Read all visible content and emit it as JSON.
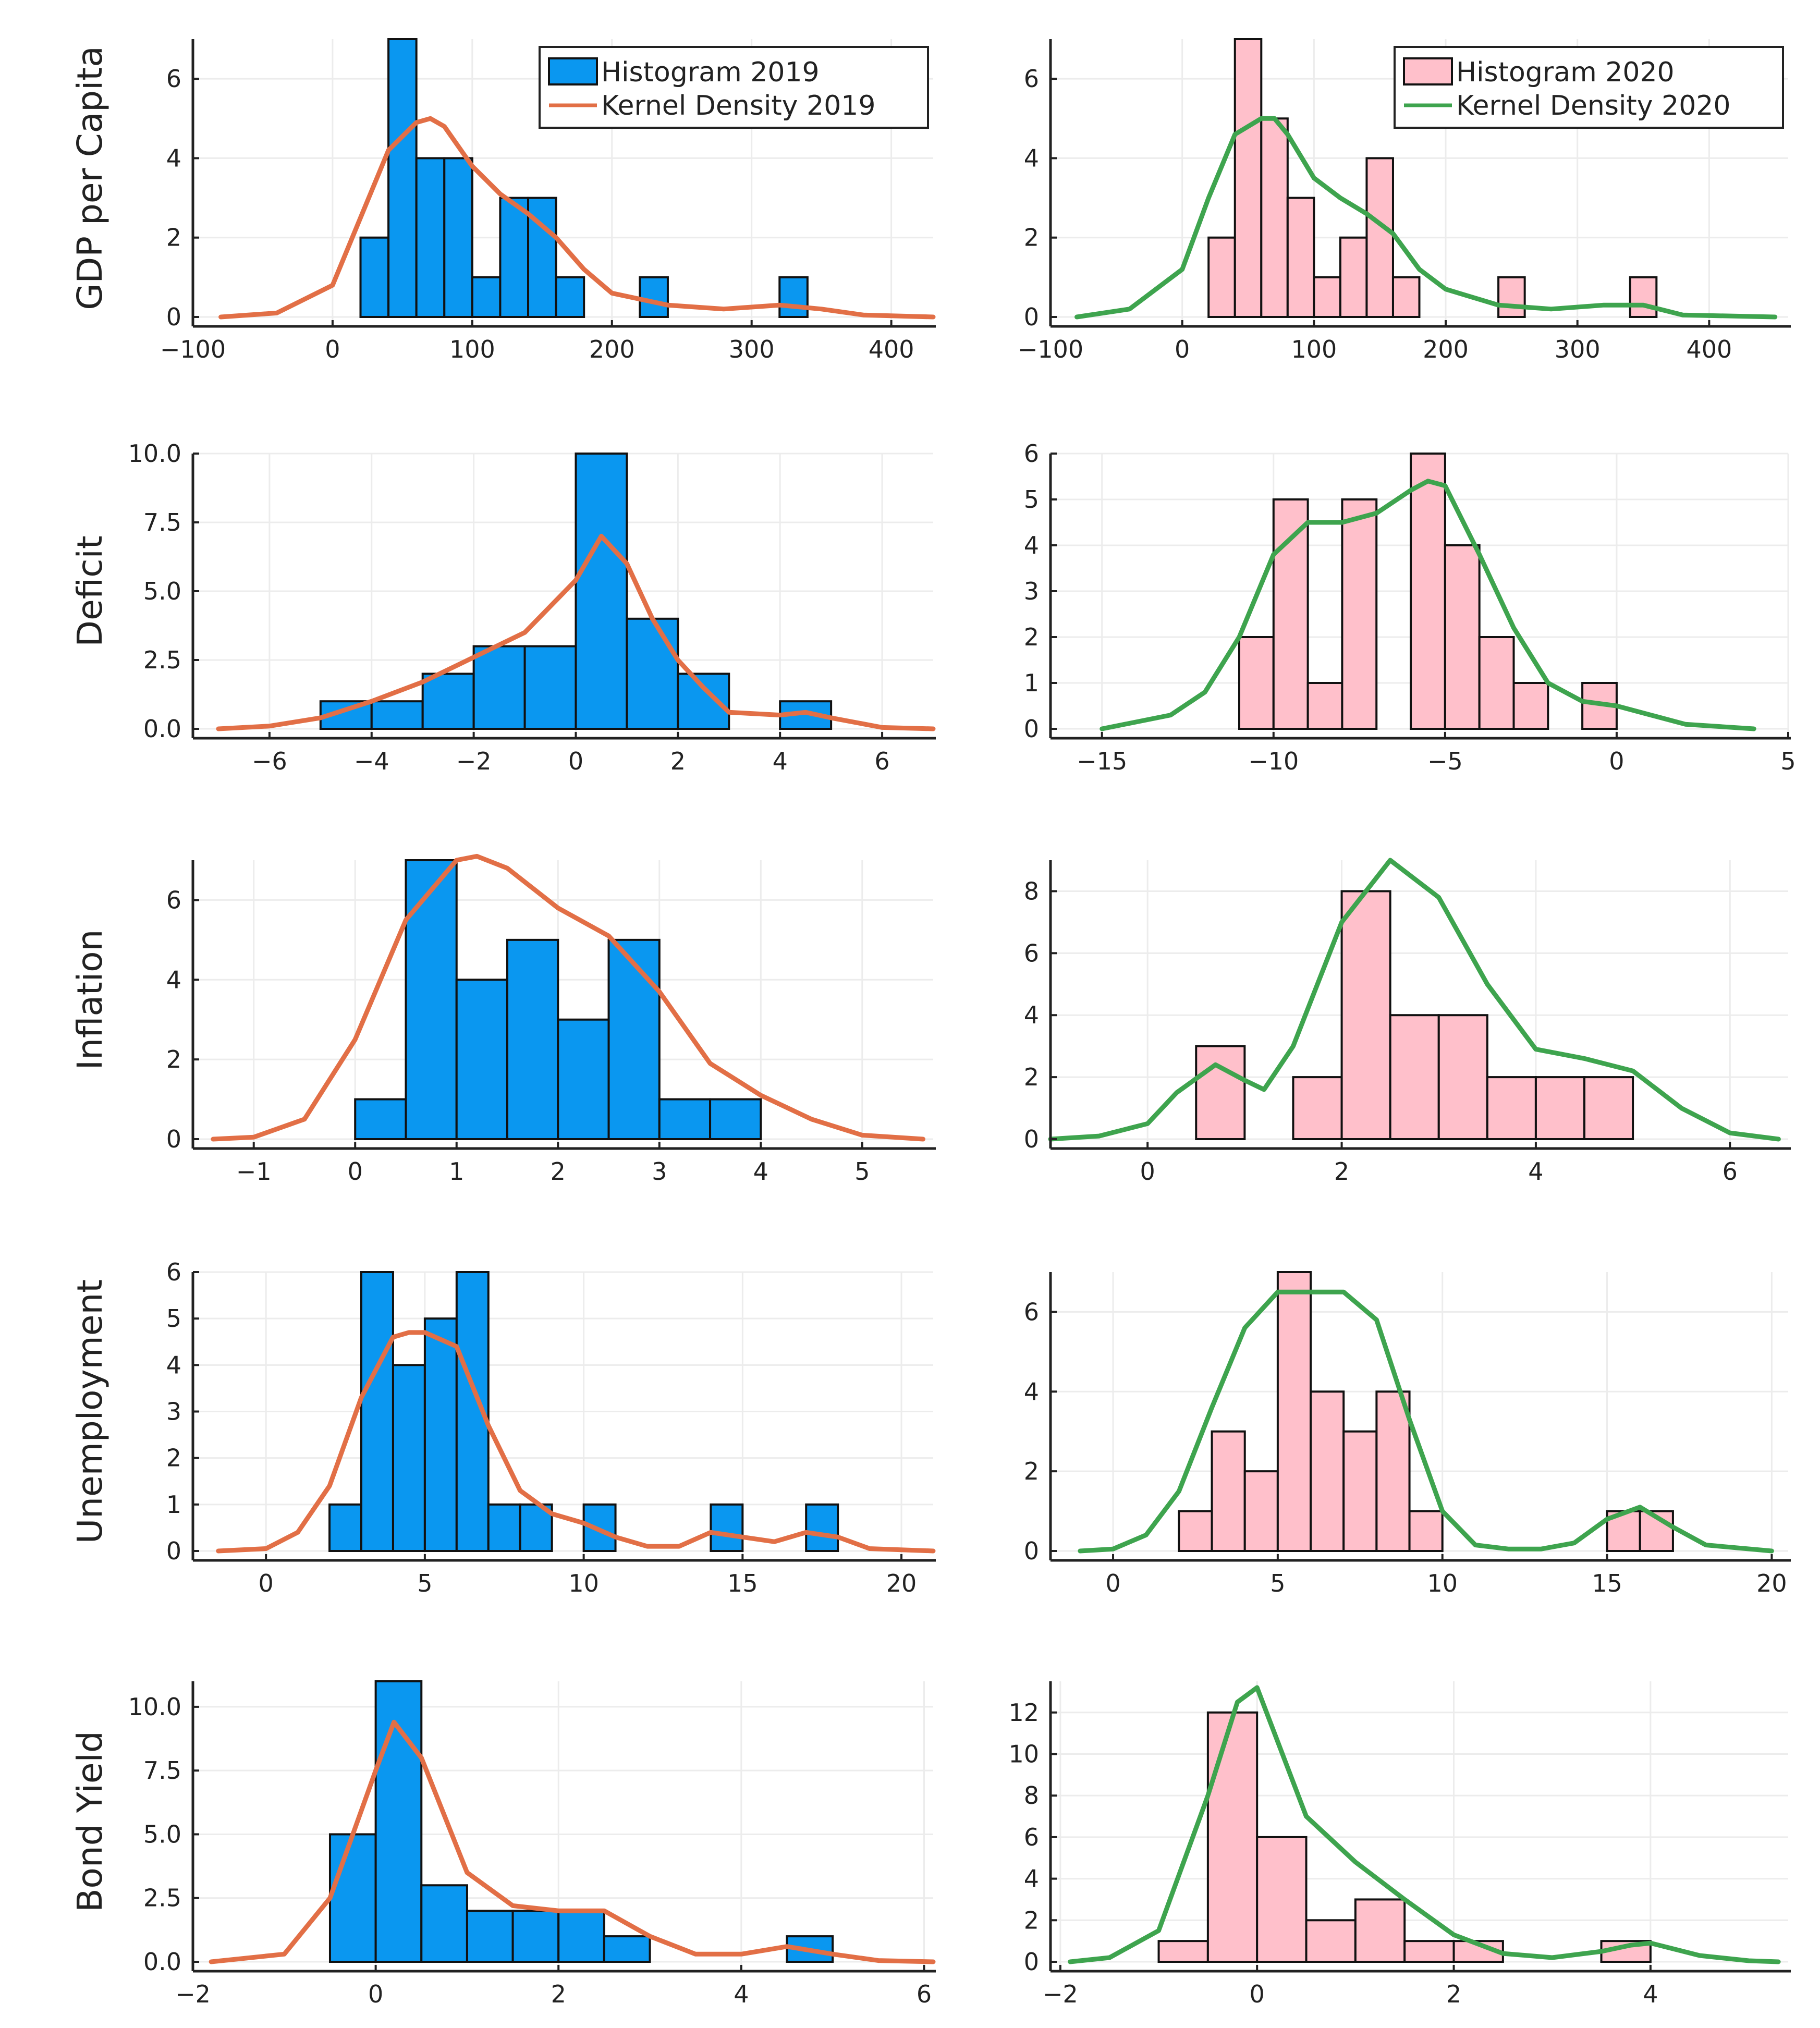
{
  "colors": {
    "hist_2019": "#0a97f0",
    "hist_2020": "#ffc0cb",
    "kde_2019": "#e26f46",
    "kde_2020": "#3ea44e",
    "axis": "#222222",
    "grid": "#ececec"
  },
  "chart_data": [
    {
      "type": "bar",
      "variable": "GDP per Capita",
      "year": "2019",
      "ylabel": "GDP per Capita",
      "legend": [
        "Histogram 2019",
        "Kernel Density 2019"
      ],
      "legend_placement": "top-right",
      "bin_edges": [
        20,
        40,
        60,
        80,
        100,
        120,
        140,
        160,
        180,
        200,
        220,
        240,
        260,
        280,
        300,
        320,
        340
      ],
      "counts": [
        2,
        7,
        4,
        4,
        1,
        3,
        3,
        1,
        0,
        0,
        1,
        0,
        0,
        0,
        0,
        1
      ],
      "density": {
        "x": [
          -80,
          -40,
          0,
          20,
          40,
          60,
          70,
          80,
          100,
          120,
          140,
          160,
          180,
          200,
          240,
          280,
          320,
          350,
          380,
          430
        ],
        "y": [
          0,
          0.1,
          0.8,
          2.5,
          4.2,
          4.9,
          5.0,
          4.8,
          3.8,
          3.1,
          2.6,
          2.0,
          1.2,
          0.6,
          0.3,
          0.2,
          0.3,
          0.2,
          0.05,
          0
        ]
      },
      "xlim": [
        -100,
        430
      ],
      "ylim": [
        0,
        7
      ],
      "xticks": [
        -100,
        0,
        100,
        200,
        300,
        400
      ],
      "xtick_labels": [
        "−100",
        "0",
        "100",
        "200",
        "300",
        "400"
      ],
      "yticks": [
        0,
        2,
        4,
        6
      ],
      "ytick_labels": [
        "0",
        "2",
        "4",
        "6"
      ]
    },
    {
      "type": "bar",
      "variable": "GDP per Capita",
      "year": "2020",
      "ylabel": "",
      "legend": [
        "Histogram 2020",
        "Kernel Density 2020"
      ],
      "legend_placement": "top-right",
      "bin_edges": [
        20,
        40,
        60,
        80,
        100,
        120,
        140,
        160,
        180,
        200,
        220,
        240,
        260,
        280,
        300,
        320,
        340,
        360
      ],
      "counts": [
        2,
        7,
        5,
        3,
        1,
        2,
        4,
        1,
        0,
        0,
        0,
        1,
        0,
        0,
        0,
        0,
        1
      ],
      "density": {
        "x": [
          -80,
          -40,
          0,
          20,
          40,
          60,
          70,
          80,
          100,
          120,
          140,
          160,
          180,
          200,
          240,
          280,
          320,
          350,
          380,
          450
        ],
        "y": [
          0,
          0.2,
          1.2,
          3.0,
          4.6,
          5.0,
          5.0,
          4.6,
          3.5,
          3.0,
          2.6,
          2.1,
          1.2,
          0.7,
          0.3,
          0.2,
          0.3,
          0.3,
          0.05,
          0
        ]
      },
      "xlim": [
        -100,
        460
      ],
      "ylim": [
        0,
        7
      ],
      "xticks": [
        -100,
        0,
        100,
        200,
        300,
        400
      ],
      "xtick_labels": [
        "−100",
        "0",
        "100",
        "200",
        "300",
        "400"
      ],
      "yticks": [
        0,
        2,
        4,
        6
      ],
      "ytick_labels": [
        "0",
        "2",
        "4",
        "6"
      ]
    },
    {
      "type": "bar",
      "variable": "Deficit",
      "year": "2019",
      "ylabel": "Deficit",
      "bin_edges": [
        -5,
        -4,
        -3,
        -2,
        -1,
        0,
        1,
        2,
        3,
        4,
        5
      ],
      "counts": [
        1,
        1,
        2,
        3,
        3,
        10,
        4,
        2,
        0,
        1
      ],
      "density": {
        "x": [
          -7,
          -6,
          -5,
          -4,
          -3,
          -2,
          -1,
          0,
          0.5,
          1,
          1.5,
          2,
          2.5,
          3,
          4,
          4.5,
          5,
          6,
          7
        ],
        "y": [
          0,
          0.1,
          0.4,
          1.0,
          1.7,
          2.6,
          3.5,
          5.4,
          7.0,
          6.0,
          4.0,
          2.5,
          1.5,
          0.6,
          0.5,
          0.6,
          0.4,
          0.05,
          0
        ]
      },
      "xlim": [
        -7.5,
        7
      ],
      "ylim": [
        0,
        10
      ],
      "xticks": [
        -6,
        -4,
        -2,
        0,
        2,
        4,
        6
      ],
      "xtick_labels": [
        "−6",
        "−4",
        "−2",
        "0",
        "2",
        "4",
        "6"
      ],
      "yticks": [
        0,
        2.5,
        5,
        7.5,
        10
      ],
      "ytick_labels": [
        "0.0",
        "2.5",
        "5.0",
        "7.5",
        "10.0"
      ]
    },
    {
      "type": "bar",
      "variable": "Deficit",
      "year": "2020",
      "ylabel": "",
      "bin_edges": [
        -11,
        -10,
        -9,
        -8,
        -7,
        -6,
        -5,
        -4,
        -3,
        -2,
        -1,
        0
      ],
      "counts": [
        2,
        5,
        1,
        5,
        0,
        6,
        4,
        2,
        1,
        0,
        1
      ],
      "density": {
        "x": [
          -15,
          -13,
          -12,
          -11,
          -10,
          -9,
          -8,
          -7,
          -6,
          -5.5,
          -5,
          -4,
          -3,
          -2,
          -1,
          0,
          1,
          2,
          4
        ],
        "y": [
          0,
          0.3,
          0.8,
          2.0,
          3.8,
          4.5,
          4.5,
          4.7,
          5.2,
          5.4,
          5.3,
          3.8,
          2.2,
          1.0,
          0.6,
          0.5,
          0.3,
          0.1,
          0
        ]
      },
      "xlim": [
        -16.5,
        5
      ],
      "ylim": [
        0,
        6
      ],
      "xticks": [
        -15,
        -10,
        -5,
        0,
        5
      ],
      "xtick_labels": [
        "−15",
        "−10",
        "−5",
        "0",
        "5"
      ],
      "yticks": [
        0,
        1,
        2,
        3,
        4,
        5,
        6
      ],
      "ytick_labels": [
        "0",
        "1",
        "2",
        "3",
        "4",
        "5",
        "6"
      ]
    },
    {
      "type": "bar",
      "variable": "Inflation",
      "year": "2019",
      "ylabel": "Inflation",
      "bin_edges": [
        0,
        0.5,
        1,
        1.5,
        2,
        2.5,
        3,
        3.5,
        4
      ],
      "counts": [
        1,
        7,
        4,
        5,
        3,
        5,
        1,
        1
      ],
      "density": {
        "x": [
          -1.4,
          -1,
          -0.5,
          0,
          0.5,
          1,
          1.2,
          1.5,
          2,
          2.5,
          3,
          3.5,
          4,
          4.5,
          5,
          5.6
        ],
        "y": [
          0,
          0.05,
          0.5,
          2.5,
          5.5,
          7.0,
          7.1,
          6.8,
          5.8,
          5.1,
          3.7,
          1.9,
          1.1,
          0.5,
          0.1,
          0
        ]
      },
      "xlim": [
        -1.6,
        5.7
      ],
      "ylim": [
        0,
        7
      ],
      "xticks": [
        -1,
        0,
        1,
        2,
        3,
        4,
        5
      ],
      "xtick_labels": [
        "−1",
        "0",
        "1",
        "2",
        "3",
        "4",
        "5"
      ],
      "yticks": [
        0,
        2,
        4,
        6
      ],
      "ytick_labels": [
        "0",
        "2",
        "4",
        "6"
      ]
    },
    {
      "type": "bar",
      "variable": "Inflation",
      "year": "2020",
      "ylabel": "",
      "bin_edges": [
        0.5,
        1,
        1.5,
        2,
        2.5,
        3,
        3.5,
        4,
        4.5,
        5
      ],
      "counts": [
        3,
        0,
        2,
        8,
        4,
        4,
        2,
        2,
        2
      ],
      "density": {
        "x": [
          -1,
          -0.5,
          0,
          0.3,
          0.7,
          1,
          1.2,
          1.5,
          2,
          2.5,
          3,
          3.5,
          4,
          4.5,
          5,
          5.5,
          6,
          6.5
        ],
        "y": [
          0,
          0.1,
          0.5,
          1.5,
          2.4,
          1.9,
          1.6,
          3.0,
          7.0,
          9.0,
          7.8,
          5.0,
          2.9,
          2.6,
          2.2,
          1.0,
          0.2,
          0
        ]
      },
      "xlim": [
        -1,
        6.6
      ],
      "ylim": [
        0,
        9
      ],
      "xticks": [
        0,
        2,
        4,
        6
      ],
      "xtick_labels": [
        "0",
        "2",
        "4",
        "6"
      ],
      "yticks": [
        0,
        2,
        4,
        6,
        8
      ],
      "ytick_labels": [
        "0",
        "2",
        "4",
        "6",
        "8"
      ]
    },
    {
      "type": "bar",
      "variable": "Unemployment",
      "year": "2019",
      "ylabel": "Unemployment",
      "bin_edges": [
        2,
        3,
        4,
        5,
        6,
        7,
        8,
        9,
        10,
        11,
        12,
        13,
        14,
        15,
        16,
        17,
        18
      ],
      "counts": [
        1,
        6,
        4,
        5,
        6,
        1,
        1,
        0,
        1,
        0,
        0,
        0,
        1,
        0,
        0,
        1
      ],
      "density": {
        "x": [
          -1.5,
          0,
          1,
          2,
          3,
          4,
          4.5,
          5,
          6,
          7,
          8,
          9,
          10,
          11,
          12,
          13,
          14,
          15,
          16,
          17,
          18,
          19,
          21
        ],
        "y": [
          0,
          0.05,
          0.4,
          1.4,
          3.3,
          4.6,
          4.7,
          4.7,
          4.4,
          2.7,
          1.3,
          0.8,
          0.6,
          0.3,
          0.1,
          0.1,
          0.4,
          0.3,
          0.2,
          0.4,
          0.3,
          0.05,
          0
        ]
      },
      "xlim": [
        -2.3,
        21
      ],
      "ylim": [
        0,
        6
      ],
      "xticks": [
        0,
        5,
        10,
        15,
        20
      ],
      "xtick_labels": [
        "0",
        "5",
        "10",
        "15",
        "20"
      ],
      "yticks": [
        0,
        1,
        2,
        3,
        4,
        5,
        6
      ],
      "ytick_labels": [
        "0",
        "1",
        "2",
        "3",
        "4",
        "5",
        "6"
      ]
    },
    {
      "type": "bar",
      "variable": "Unemployment",
      "year": "2020",
      "ylabel": "",
      "bin_edges": [
        2,
        3,
        4,
        5,
        6,
        7,
        8,
        9,
        10,
        11,
        12,
        13,
        14,
        15,
        16,
        17
      ],
      "counts": [
        1,
        3,
        2,
        7,
        4,
        3,
        4,
        1,
        0,
        0,
        0,
        0,
        0,
        1,
        1
      ],
      "density": {
        "x": [
          -1,
          0,
          1,
          2,
          3,
          4,
          5,
          6,
          7,
          8,
          9,
          10,
          11,
          12,
          13,
          14,
          15,
          16,
          17,
          18,
          20
        ],
        "y": [
          0,
          0.05,
          0.4,
          1.5,
          3.6,
          5.6,
          6.5,
          6.5,
          6.5,
          5.8,
          3.3,
          1.0,
          0.15,
          0.05,
          0.05,
          0.2,
          0.8,
          1.1,
          0.6,
          0.15,
          0
        ]
      },
      "xlim": [
        -1.9,
        20.5
      ],
      "ylim": [
        0,
        7
      ],
      "xticks": [
        0,
        5,
        10,
        15,
        20
      ],
      "xtick_labels": [
        "0",
        "5",
        "10",
        "15",
        "20"
      ],
      "yticks": [
        0,
        2,
        4,
        6
      ],
      "ytick_labels": [
        "0",
        "2",
        "4",
        "6"
      ]
    },
    {
      "type": "bar",
      "variable": "Bond Yield",
      "year": "2019",
      "ylabel": "Bond Yield",
      "bin_edges": [
        -0.5,
        0,
        0.5,
        1,
        1.5,
        2,
        2.5,
        3,
        3.5,
        4,
        4.5,
        5
      ],
      "counts": [
        5,
        11,
        3,
        2,
        2,
        2,
        1,
        0,
        0,
        0,
        1
      ],
      "density": {
        "x": [
          -1.8,
          -1,
          -0.5,
          0,
          0.2,
          0.5,
          1,
          1.5,
          2,
          2.5,
          3,
          3.5,
          4,
          4.5,
          5,
          5.5,
          6.1
        ],
        "y": [
          0,
          0.3,
          2.5,
          7.5,
          9.4,
          8.0,
          3.5,
          2.2,
          2.0,
          2.0,
          1.0,
          0.3,
          0.3,
          0.6,
          0.3,
          0.05,
          0
        ]
      },
      "xlim": [
        -2,
        6.1
      ],
      "ylim": [
        0,
        11
      ],
      "xticks": [
        -2,
        0,
        2,
        4,
        6
      ],
      "xtick_labels": [
        "−2",
        "0",
        "2",
        "4",
        "6"
      ],
      "yticks": [
        0,
        2.5,
        5,
        7.5,
        10
      ],
      "ytick_labels": [
        "0.0",
        "2.5",
        "5.0",
        "7.5",
        "10.0"
      ]
    },
    {
      "type": "bar",
      "variable": "Bond Yield",
      "year": "2020",
      "ylabel": "",
      "bin_edges": [
        -1,
        -0.5,
        0,
        0.5,
        1,
        1.5,
        2,
        2.5,
        3,
        3.5,
        4
      ],
      "counts": [
        1,
        12,
        6,
        2,
        3,
        1,
        1,
        0,
        0,
        1
      ],
      "density": {
        "x": [
          -1.9,
          -1.5,
          -1,
          -0.5,
          -0.2,
          0,
          0.5,
          1,
          1.5,
          2,
          2.5,
          3,
          3.5,
          3.8,
          4,
          4.5,
          5,
          5.3
        ],
        "y": [
          0,
          0.2,
          1.5,
          8.0,
          12.5,
          13.2,
          7.0,
          4.8,
          3.0,
          1.3,
          0.4,
          0.2,
          0.5,
          0.8,
          0.9,
          0.3,
          0.05,
          0
        ]
      },
      "xlim": [
        -2.1,
        5.4
      ],
      "ylim": [
        0,
        13.5
      ],
      "xticks": [
        -2,
        0,
        2,
        4
      ],
      "xtick_labels": [
        "−2",
        "0",
        "2",
        "4"
      ],
      "yticks": [
        0,
        2,
        4,
        6,
        8,
        10,
        12
      ],
      "ytick_labels": [
        "0",
        "2",
        "4",
        "6",
        "8",
        "10",
        "12"
      ]
    }
  ]
}
